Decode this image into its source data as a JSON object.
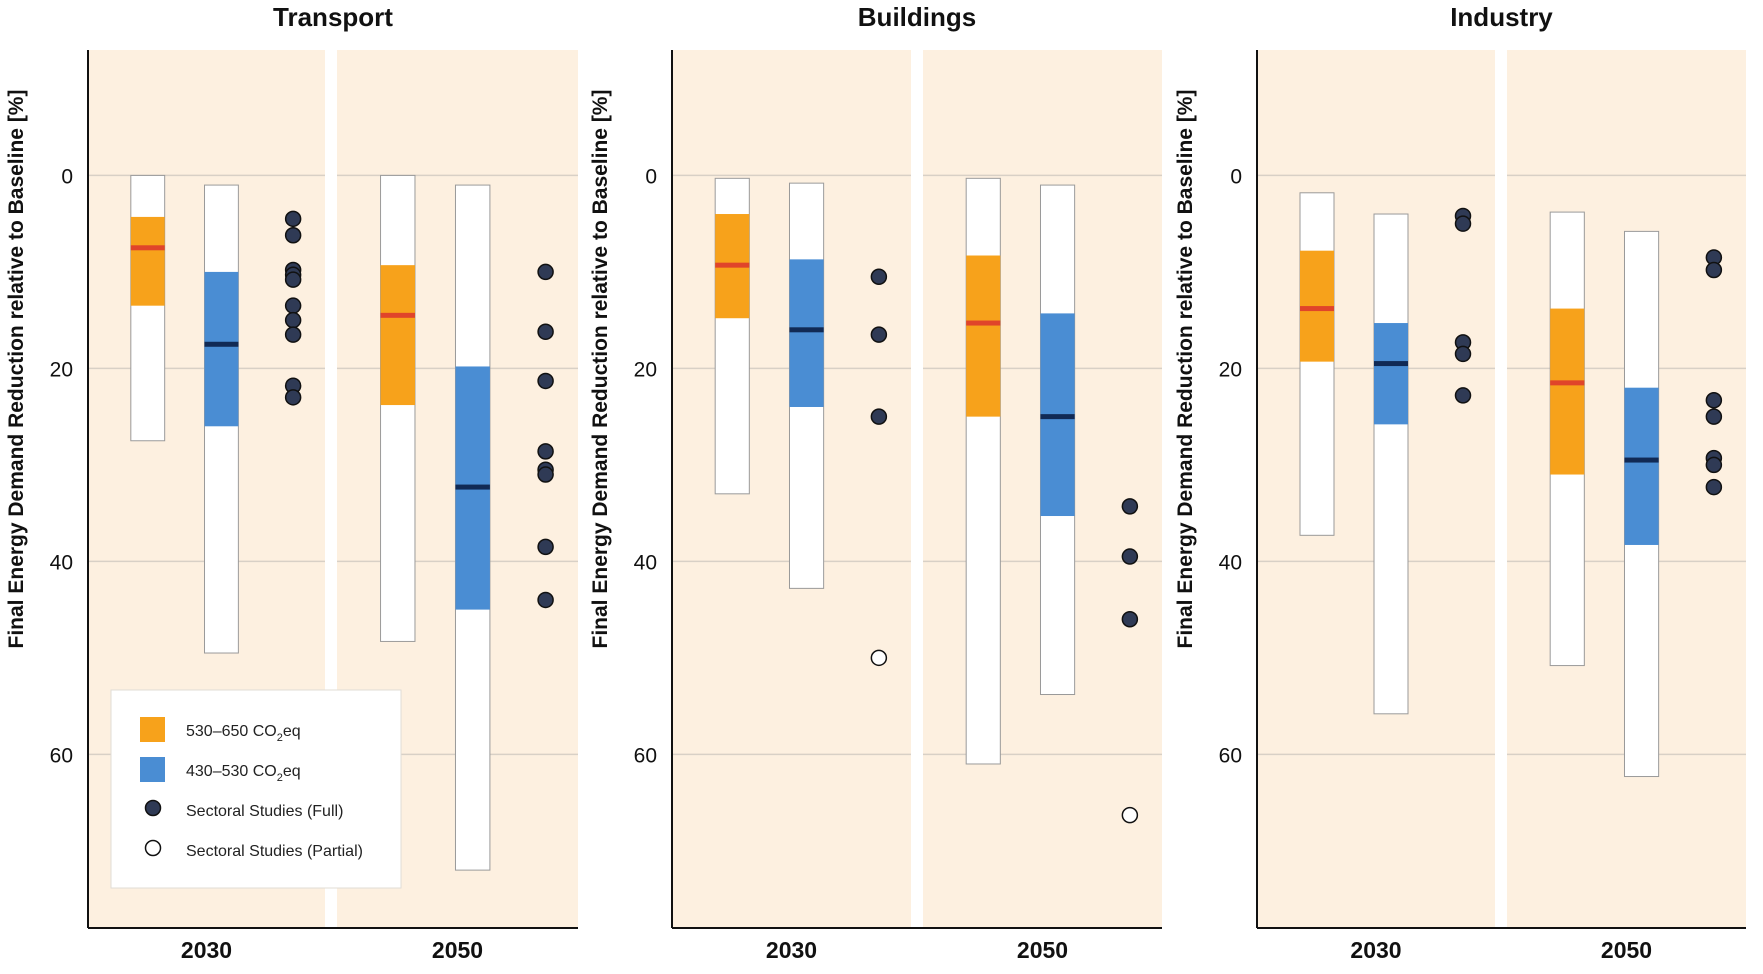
{
  "chart_data": {
    "type": "boxplot",
    "ylabel": "Final Energy Demand Reduction relative to Baseline [%]",
    "ylim": [
      -13,
      78
    ],
    "y_axis_inverted": true,
    "yticks": [
      0,
      20,
      40,
      60
    ],
    "grid": true,
    "legend_position": "bottom-left of first panel",
    "colors": {
      "panel_bg": "#fdf0e0",
      "cat1_fill": "#f7a21b",
      "cat1_median": "#e0442a",
      "cat2_fill": "#4a8dd3",
      "cat2_median": "#112a55",
      "dot_full": "#2f3a55",
      "dot_partial": "#ffffff",
      "gridline": "#d8d0c6"
    },
    "legend": [
      {
        "kind": "box",
        "category": "cat1",
        "text_main": "530–650 CO",
        "text_sub": "2",
        "text_tail": "eq"
      },
      {
        "kind": "box",
        "category": "cat2",
        "text_main": "430–530 CO",
        "text_sub": "2",
        "text_tail": "eq"
      },
      {
        "kind": "dot_full",
        "text_main": "Sectoral Studies (Full)",
        "text_sub": "",
        "text_tail": ""
      },
      {
        "kind": "dot_partial",
        "text_main": "Sectoral Studies (Partial)",
        "text_sub": "",
        "text_tail": ""
      }
    ],
    "panels": [
      {
        "title": "Transport",
        "years": [
          {
            "label": "2030",
            "cat1": {
              "min": 0,
              "q1": 4.3,
              "median": 7.5,
              "q3": 13.5,
              "max": 27.5
            },
            "cat2": {
              "min": 1,
              "q1": 10,
              "median": 17.5,
              "q3": 26,
              "max": 49.5
            },
            "dots_full": [
              4.5,
              6.2,
              9.8,
              10.3,
              10.8,
              13.5,
              15,
              16.5,
              21.8,
              23
            ],
            "dots_partial": []
          },
          {
            "label": "2050",
            "cat1": {
              "min": 0,
              "q1": 9.3,
              "median": 14.5,
              "q3": 23.8,
              "max": 48.3
            },
            "cat2": {
              "min": 1,
              "q1": 19.8,
              "median": 32.3,
              "q3": 45,
              "max": 72
            },
            "dots_full": [
              10,
              16.2,
              21.3,
              28.6,
              30.5,
              31,
              38.5,
              44
            ],
            "dots_partial": []
          }
        ]
      },
      {
        "title": "Buildings",
        "years": [
          {
            "label": "2030",
            "cat1": {
              "min": 0.3,
              "q1": 4,
              "median": 9.3,
              "q3": 14.8,
              "max": 33
            },
            "cat2": {
              "min": 0.8,
              "q1": 8.7,
              "median": 16,
              "q3": 24,
              "max": 42.8
            },
            "dots_full": [
              10.5,
              16.5,
              25
            ],
            "dots_partial": [
              50
            ]
          },
          {
            "label": "2050",
            "cat1": {
              "min": 0.3,
              "q1": 8.3,
              "median": 15.3,
              "q3": 25,
              "max": 61
            },
            "cat2": {
              "min": 1,
              "q1": 14.3,
              "median": 25,
              "q3": 35.3,
              "max": 53.8
            },
            "dots_full": [
              34.3,
              39.5,
              46
            ],
            "dots_partial": [
              66.3
            ]
          }
        ]
      },
      {
        "title": "Industry",
        "years": [
          {
            "label": "2030",
            "cat1": {
              "min": 1.8,
              "q1": 7.8,
              "median": 13.8,
              "q3": 19.3,
              "max": 37.3
            },
            "cat2": {
              "min": 4,
              "q1": 15.3,
              "median": 19.5,
              "q3": 25.8,
              "max": 55.8
            },
            "dots_full": [
              4.2,
              5,
              17.3,
              18.5,
              22.8
            ],
            "dots_partial": []
          },
          {
            "label": "2050",
            "cat1": {
              "min": 3.8,
              "q1": 13.8,
              "median": 21.5,
              "q3": 31,
              "max": 50.8
            },
            "cat2": {
              "min": 5.8,
              "q1": 22,
              "median": 29.5,
              "q3": 38.3,
              "max": 62.3
            },
            "dots_full": [
              8.5,
              9.8,
              23.3,
              25,
              29.3,
              30,
              32.3
            ],
            "dots_partial": []
          }
        ]
      }
    ]
  }
}
